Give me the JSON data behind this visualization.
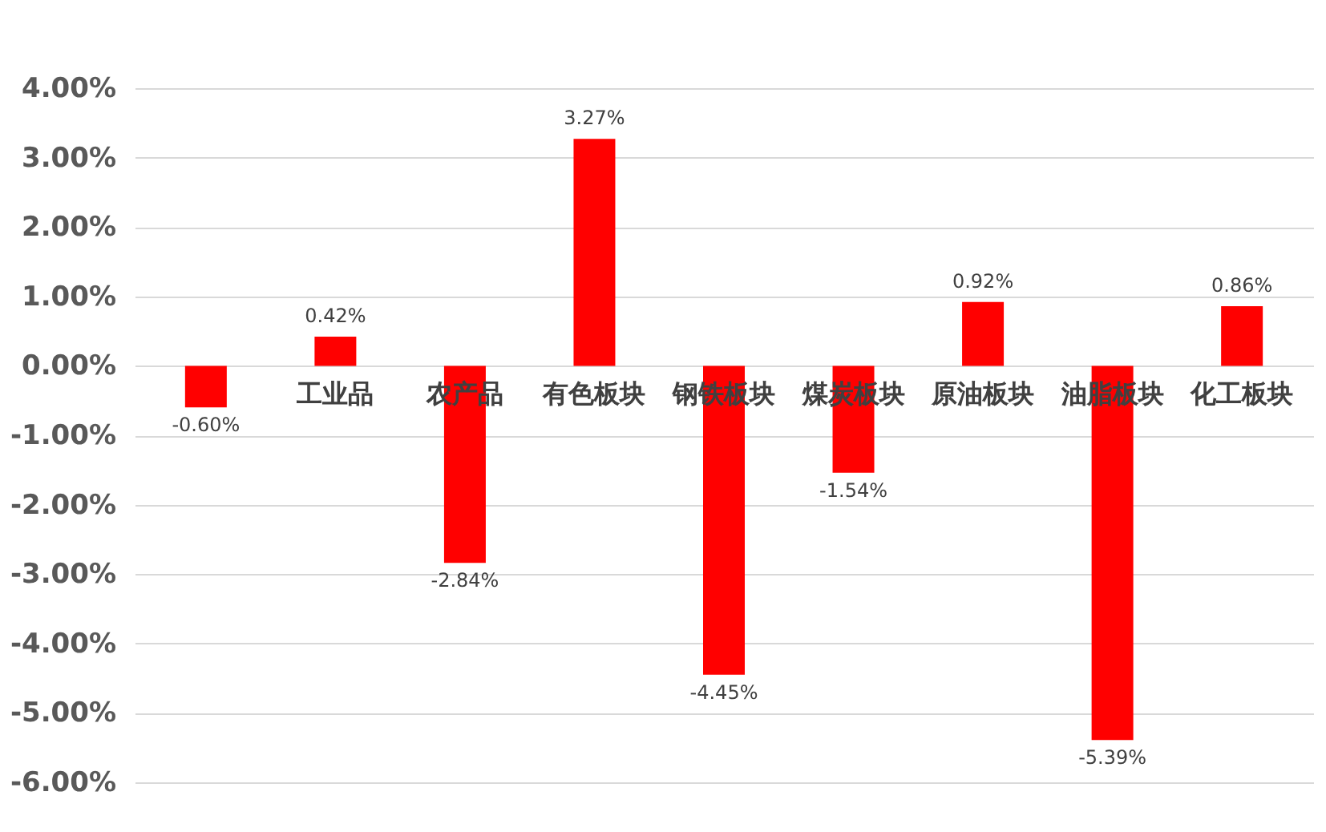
{
  "chart_data": {
    "type": "bar",
    "categories": [
      null,
      "工业品",
      "农产品",
      "有色板块",
      "钢铁板块",
      "煤炭板块",
      "原油板块",
      "油脂板块",
      "化工板块"
    ],
    "values": [
      -0.6,
      0.42,
      -2.84,
      3.27,
      -4.45,
      -1.54,
      0.92,
      -5.39,
      0.86
    ],
    "value_labels": [
      "-0.60%",
      "0.42%",
      "-2.84%",
      "3.27%",
      "-4.45%",
      "-1.54%",
      "0.92%",
      "-5.39%",
      "0.86%"
    ],
    "color": "#ff0000",
    "ylim": [
      -6,
      4
    ],
    "yticks": [
      {
        "value": 4,
        "label": "4.00%"
      },
      {
        "value": 3,
        "label": "3.00%"
      },
      {
        "value": 2,
        "label": "2.00%"
      },
      {
        "value": 1,
        "label": "1.00%"
      },
      {
        "value": 0,
        "label": "0.00%"
      },
      {
        "value": -1,
        "label": "-1.00%"
      },
      {
        "value": -2,
        "label": "-2.00%"
      },
      {
        "value": -3,
        "label": "-3.00%"
      },
      {
        "value": -4,
        "label": "-4.00%"
      },
      {
        "value": -5,
        "label": "-5.00%"
      },
      {
        "value": -6,
        "label": "-6.00%"
      }
    ],
    "grid": "y"
  }
}
